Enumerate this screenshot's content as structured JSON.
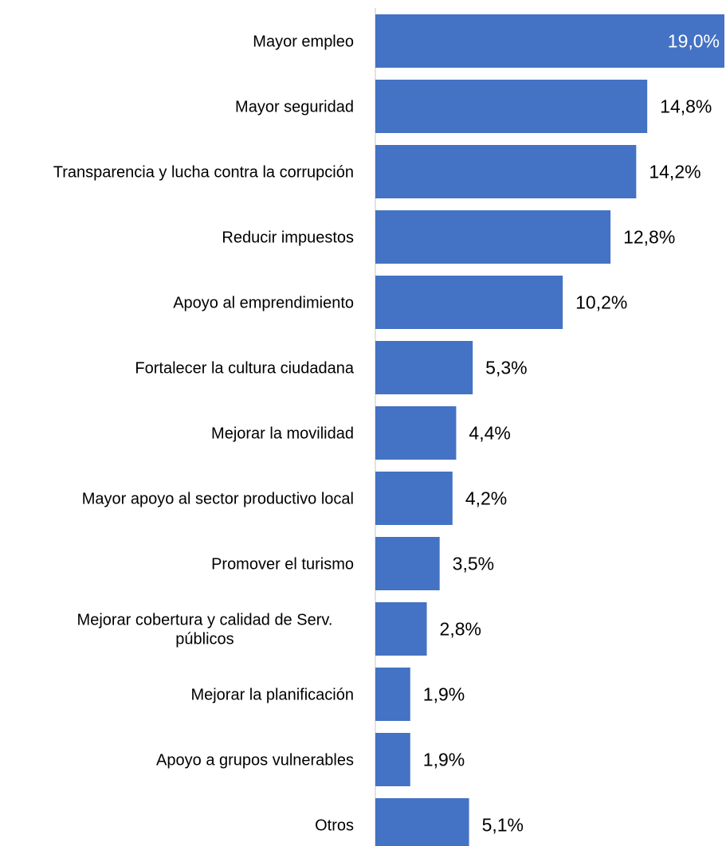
{
  "chart_data": {
    "type": "bar",
    "orientation": "horizontal",
    "title": "",
    "xlabel": "",
    "ylabel": "",
    "categories": [
      [
        "Mayor empleo"
      ],
      [
        "Mayor seguridad"
      ],
      [
        "Transparencia y lucha contra la corrupción"
      ],
      [
        "Reducir impuestos"
      ],
      [
        "Apoyo al emprendimiento"
      ],
      [
        "Fortalecer la cultura ciudadana"
      ],
      [
        "Mejorar la movilidad"
      ],
      [
        "Mayor apoyo al sector productivo local"
      ],
      [
        "Promover el turismo"
      ],
      [
        "Mejorar cobertura y calidad de Serv.",
        "públicos"
      ],
      [
        "Mejorar la planificación"
      ],
      [
        "Apoyo a grupos vulnerables"
      ],
      [
        "Otros"
      ]
    ],
    "values": [
      19.0,
      14.8,
      14.2,
      12.8,
      10.2,
      5.3,
      4.4,
      4.2,
      3.5,
      2.8,
      1.9,
      1.9,
      5.1
    ],
    "value_labels": [
      "19,0%",
      "14,8%",
      "14,2%",
      "12,8%",
      "10,2%",
      "5,3%",
      "4,4%",
      "4,2%",
      "3,5%",
      "2,8%",
      "1,9%",
      "1,9%",
      "5,1%"
    ],
    "xlim": [
      0,
      19.0
    ],
    "grid": false,
    "legend": "none",
    "colors": {
      "bar": "#4472C4",
      "axis": "#D9D9D9",
      "label": "#000000",
      "value_inside": "#FFFFFF",
      "value_outside": "#000000"
    }
  }
}
